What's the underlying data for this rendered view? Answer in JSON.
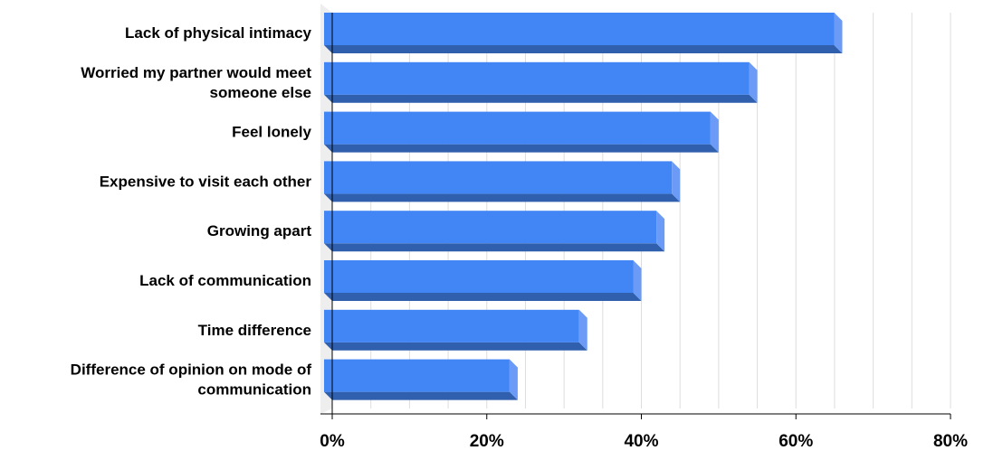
{
  "chart_data": {
    "type": "bar",
    "orientation": "horizontal",
    "style": "3d",
    "categories": [
      [
        "Lack of physical intimacy"
      ],
      [
        "Worried my partner would meet",
        "someone else"
      ],
      [
        "Feel lonely"
      ],
      [
        "Expensive to visit each other"
      ],
      [
        "Growing apart"
      ],
      [
        "Lack of communication"
      ],
      [
        "Time difference"
      ],
      [
        "Difference of opinion on mode of",
        "communication"
      ]
    ],
    "values": [
      66,
      55,
      50,
      45,
      43,
      40,
      33,
      24
    ],
    "value_unit": "%",
    "xlim": [
      0,
      80
    ],
    "x_ticks": [
      0,
      20,
      40,
      60,
      80
    ],
    "x_tick_labels": [
      "0%",
      "20%",
      "40%",
      "60%",
      "80%"
    ],
    "title": "",
    "xlabel": "",
    "ylabel": "",
    "grid": true,
    "legend": "none",
    "colors": {
      "bar_front": "#4285F4",
      "bar_top": "#6FA0F6",
      "bar_bottom": "#2F5FAD",
      "bar_side": "#6B9BF7",
      "grid": "#DDDDDD",
      "axis": "#000000",
      "wall": "#EEEEEE"
    }
  }
}
